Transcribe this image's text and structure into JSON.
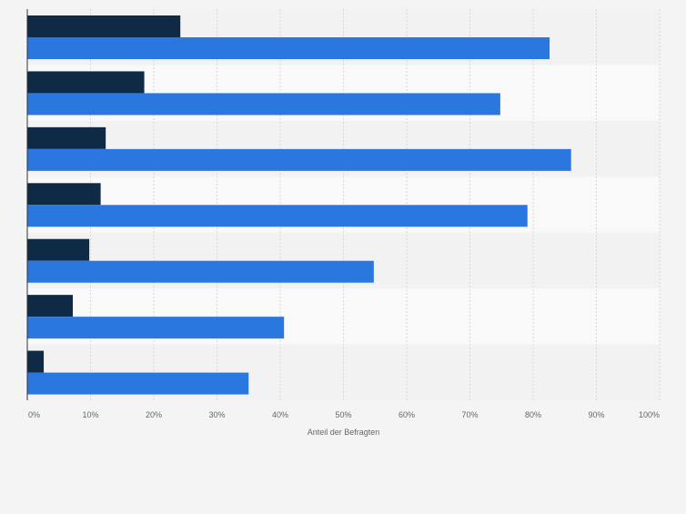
{
  "chart_data": {
    "type": "bar",
    "orientation": "horizontal",
    "categories": [
      "",
      "",
      "",
      "",
      "",
      "",
      ""
    ],
    "series": [
      {
        "values": [
          24.2,
          18.5,
          12.4,
          11.6,
          9.8,
          7.2,
          2.6
        ],
        "color": "#0f2a45"
      },
      {
        "values": [
          82.6,
          74.8,
          86.0,
          79.1,
          54.8,
          40.6,
          35.0
        ],
        "color": "#2a77e0"
      }
    ],
    "xlabel": "Anteil der Befragten",
    "ylabel": "",
    "xlim": [
      0,
      100
    ],
    "x_ticks": [
      "0%",
      "10%",
      "20%",
      "30%",
      "40%",
      "50%",
      "60%",
      "70%",
      "80%",
      "90%",
      "100%"
    ],
    "grid": true,
    "legend": "none"
  }
}
